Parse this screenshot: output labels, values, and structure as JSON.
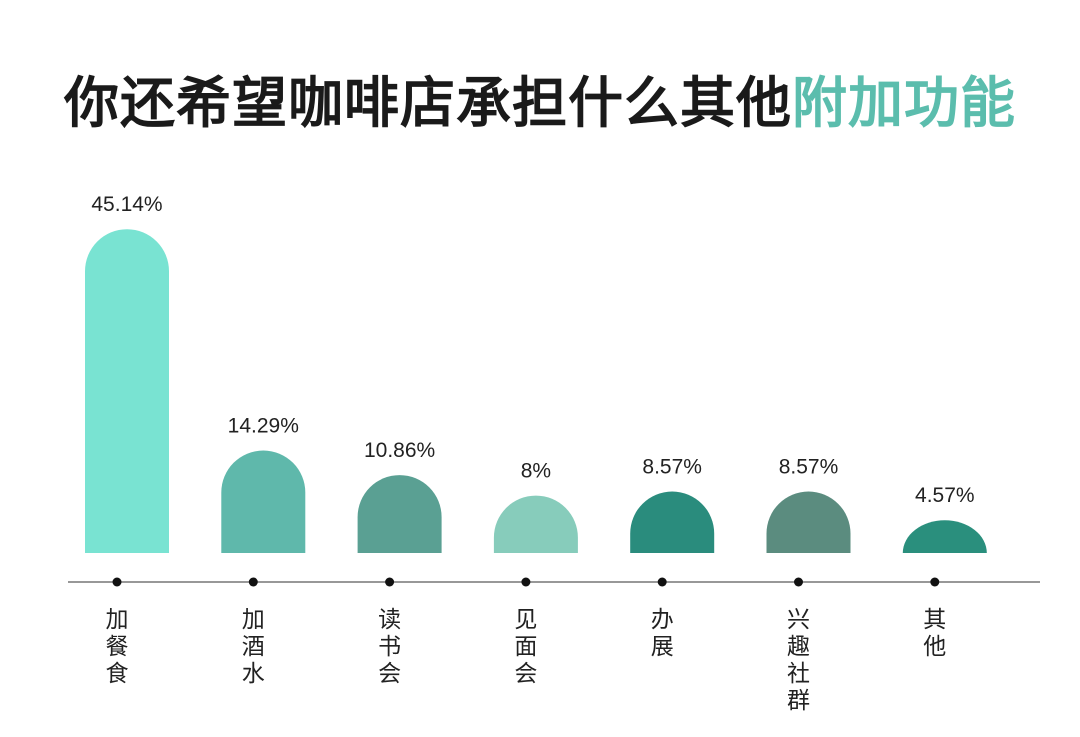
{
  "title": {
    "main": "你还希望咖啡店承担什么其他",
    "accent": "附加功能",
    "accent_color": "#5bbdad"
  },
  "chart_data": {
    "type": "bar",
    "categories": [
      "加餐食",
      "加酒水",
      "读书会",
      "见面会",
      "办展",
      "兴趣社群",
      "其他"
    ],
    "values": [
      45.14,
      14.29,
      10.86,
      8,
      8.57,
      8.57,
      4.57
    ],
    "value_labels": [
      "45.14%",
      "14.29%",
      "10.86%",
      "8%",
      "8.57%",
      "8.57%",
      "4.57%"
    ],
    "colors": [
      "#79e3d2",
      "#5fb8ab",
      "#5aa093",
      "#87ccbb",
      "#2a8c7d",
      "#5b8c7f",
      "#2a8f7d"
    ],
    "unit": "%",
    "ylim": [
      0,
      46
    ],
    "grid": false,
    "legend": "none"
  }
}
